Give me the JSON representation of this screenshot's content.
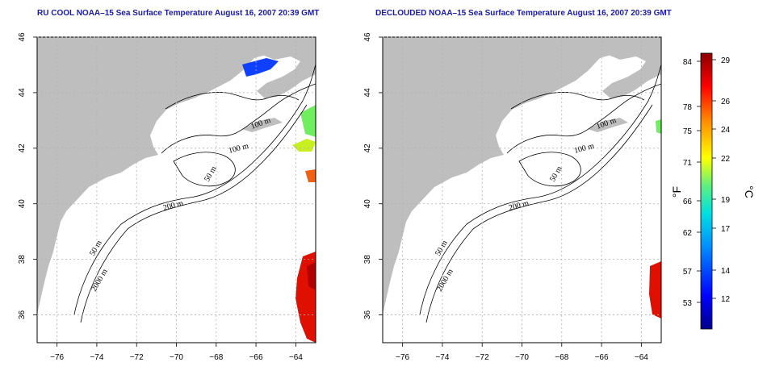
{
  "panels": [
    {
      "title": "RU COOL NOAA–15 Sea Surface Temperature August 16, 2007 20:39 GMT",
      "contour_labels": [
        "100 m",
        "100 m",
        "50 m",
        "200 m",
        "50 m",
        "2000 m"
      ]
    },
    {
      "title": "DECLOUDED NOAA–15 Sea Surface Temperature August 16, 2007 20:39 GMT",
      "contour_labels": [
        "100 m",
        "100 m",
        "50 m",
        "200 m",
        "50 m",
        "2000 m"
      ]
    }
  ],
  "axes": {
    "lon_ticks": [
      "−76",
      "−74",
      "−72",
      "−70",
      "−68",
      "−66",
      "−64"
    ],
    "lat_ticks": [
      "36",
      "38",
      "40",
      "42",
      "44",
      "46"
    ],
    "grid": "dotted"
  },
  "colorbar": {
    "fahrenheit_ticks": [
      "84",
      "78",
      "75",
      "71",
      "66",
      "62",
      "57",
      "53"
    ],
    "celsius_ticks": [
      "29",
      "26",
      "24",
      "22",
      "19",
      "17",
      "14",
      "12"
    ],
    "unit_f": "°F",
    "unit_c": "°C",
    "colors": [
      "#00008b",
      "#0000ff",
      "#0080ff",
      "#00ffff",
      "#80ff80",
      "#ffff00",
      "#ff8000",
      "#ff0000",
      "#8b0000"
    ]
  }
}
